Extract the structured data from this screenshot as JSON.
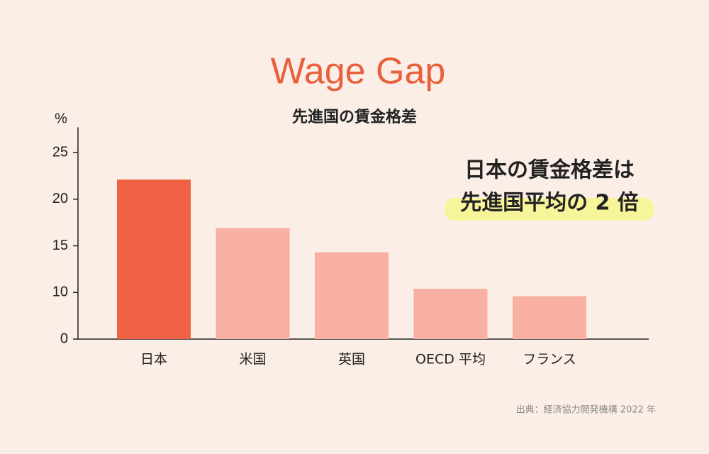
{
  "chart_data": {
    "type": "bar",
    "title": "Wage Gap",
    "subtitle": "先進国の賃金格差",
    "y_label": "%",
    "categories": [
      "日本",
      "米国",
      "英国",
      "OECD 平均",
      "フランス"
    ],
    "values": [
      22.1,
      16.9,
      14.3,
      10.4,
      9.2
    ],
    "colors": [
      "#ee6145",
      "#f8b0a2",
      "#f8b0a2",
      "#f8b0a2",
      "#f8b0a2"
    ],
    "ylim": [
      0,
      27.7
    ],
    "yticks": [
      0,
      10,
      15,
      20,
      25
    ],
    "broken_axis": true,
    "grid": false,
    "annotations": [
      "日本の賃金格差は",
      "先進国平均の 2 倍"
    ],
    "source": "出典：経済協力開発機構 2022 年"
  }
}
